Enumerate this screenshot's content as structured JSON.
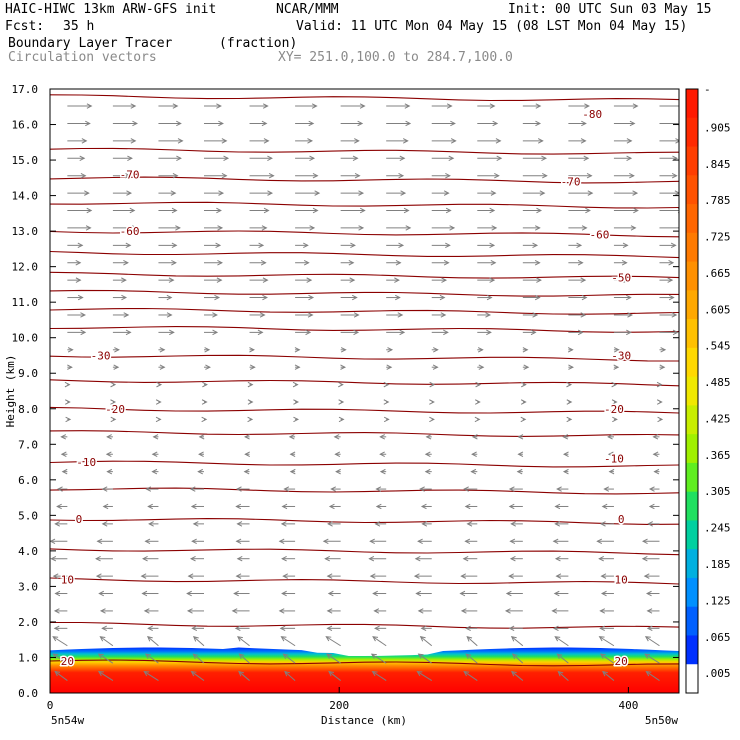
{
  "header": {
    "title_left": "HAIC-HIWC 13km ARW-GFS init",
    "org": "NCAR/MMM",
    "init": "Init: 00 UTC Sun 03 May 15",
    "fcst_label": "Fcst:",
    "fcst_value": "35 h",
    "valid": "Valid: 11 UTC Mon 04 May 15 (08 LST Mon 04 May 15)",
    "field_name": "Boundary Layer Tracer",
    "field_units": "(fraction)",
    "overlay_name": "Circulation vectors",
    "xy_range": "XY= 251.0,100.0 to 284.7,100.0"
  },
  "chart_data": {
    "type": "heatmap",
    "xlabel": "Distance (km)",
    "ylabel": "Height (km)",
    "xlim": [
      0,
      435
    ],
    "ylim": [
      0.0,
      17.0
    ],
    "x_ticks": [
      "0",
      "200",
      "400"
    ],
    "y_ticks": [
      "0.0",
      "1.0",
      "2.0",
      "3.0",
      "4.0",
      "5.0",
      "6.0",
      "7.0",
      "8.0",
      "9.0",
      "10.0",
      "11.0",
      "12.0",
      "13.0",
      "14.0",
      "15.0",
      "16.0",
      "17.0"
    ],
    "x_endpoints": {
      "left": "5n54w",
      "right": "5n50w"
    },
    "colorbar": {
      "labels": [
        "-",
        ".905",
        ".845",
        ".785",
        ".725",
        ".665",
        ".605",
        ".545",
        ".485",
        ".425",
        ".365",
        ".305",
        ".245",
        ".185",
        ".125",
        ".065",
        ".005"
      ],
      "colors": [
        "#ff1a00",
        "#ff2a00",
        "#ff3e00",
        "#ff5200",
        "#ff6600",
        "#ff7a00",
        "#ff9000",
        "#ffa800",
        "#ffc000",
        "#ffd800",
        "#f0e800",
        "#c8ee00",
        "#a0f000",
        "#60ee20",
        "#20e060",
        "#00d0a0",
        "#00b0e0",
        "#0090ff",
        "#0060ff",
        "#0030ff",
        "#ffffff"
      ]
    },
    "tracer_layer": {
      "top_km": 1.2,
      "max_value": 1.0
    },
    "temperature_contours": [
      {
        "label": "-80",
        "x": 375,
        "y": 16.3
      },
      {
        "label": "-70",
        "x": 55,
        "y": 14.6
      },
      {
        "label": "-70",
        "x": 360,
        "y": 14.4
      },
      {
        "label": "-60",
        "x": 55,
        "y": 13.0
      },
      {
        "label": "-60",
        "x": 380,
        "y": 12.9
      },
      {
        "label": "-50",
        "x": 395,
        "y": 11.7
      },
      {
        "label": "-30",
        "x": 35,
        "y": 9.5
      },
      {
        "label": "-30",
        "x": 395,
        "y": 9.5
      },
      {
        "label": "-20",
        "x": 45,
        "y": 8.0
      },
      {
        "label": "-20",
        "x": 390,
        "y": 8.0
      },
      {
        "label": "-10",
        "x": 25,
        "y": 6.5
      },
      {
        "label": "-10",
        "x": 390,
        "y": 6.6
      },
      {
        "label": "0",
        "x": 20,
        "y": 4.9
      },
      {
        "label": "0",
        "x": 395,
        "y": 4.9
      },
      {
        "label": "10",
        "x": 12,
        "y": 3.2
      },
      {
        "label": "10",
        "x": 395,
        "y": 3.2
      },
      {
        "label": "20",
        "x": 12,
        "y": 0.9
      },
      {
        "label": "20",
        "x": 395,
        "y": 0.9
      }
    ]
  }
}
